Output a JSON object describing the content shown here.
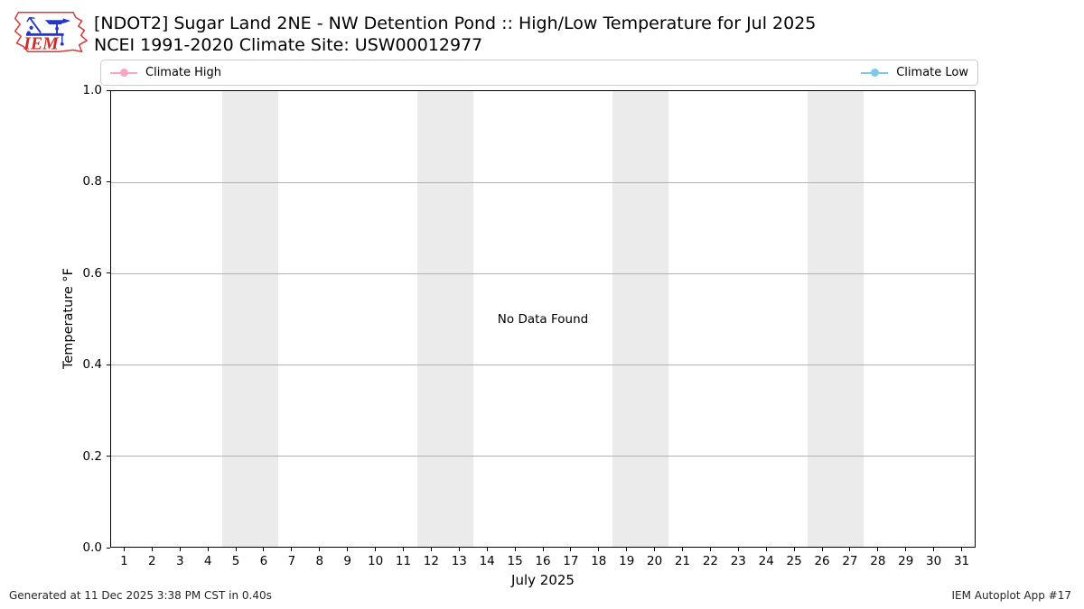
{
  "header": {
    "logo_text": "IEM",
    "title_line1": "[NDOT2] Sugar Land 2NE - NW Detention Pond :: High/Low Temperature for Jul 2025",
    "title_line2": "NCEI 1991-2020 Climate Site: USW00012977"
  },
  "legend": {
    "items": [
      {
        "label": "Climate High",
        "color": "#f7a8bc"
      },
      {
        "label": "Climate Low",
        "color": "#7ec8e8"
      }
    ]
  },
  "chart_data": {
    "type": "line",
    "title": "[NDOT2] Sugar Land 2NE - NW Detention Pond :: High/Low Temperature for Jul 2025",
    "subtitle": "NCEI 1991-2020 Climate Site: USW00012977",
    "xlabel": "July 2025",
    "ylabel": "Temperature °F",
    "xlim": [
      0.5,
      31.5
    ],
    "ylim": [
      0.0,
      1.0
    ],
    "x_ticks": [
      1,
      2,
      3,
      4,
      5,
      6,
      7,
      8,
      9,
      10,
      11,
      12,
      13,
      14,
      15,
      16,
      17,
      18,
      19,
      20,
      21,
      22,
      23,
      24,
      25,
      26,
      27,
      28,
      29,
      30,
      31
    ],
    "y_ticks": [
      "0.0",
      "0.2",
      "0.4",
      "0.6",
      "0.8",
      "1.0"
    ],
    "grid": "horizontal",
    "legend_position": "top",
    "series": [
      {
        "name": "Climate High",
        "color": "#f7a8bc",
        "values": []
      },
      {
        "name": "Climate Low",
        "color": "#7ec8e8",
        "values": []
      }
    ],
    "no_data_message": "No Data Found",
    "weekend_bands": [
      [
        4.5,
        6.5
      ],
      [
        11.5,
        13.5
      ],
      [
        18.5,
        20.5
      ],
      [
        25.5,
        27.5
      ]
    ],
    "band_color": "#ebebeb"
  },
  "footer": {
    "left": "Generated at 11 Dec 2025 3:38 PM CST in 0.40s",
    "right": "IEM Autoplot App #17"
  }
}
